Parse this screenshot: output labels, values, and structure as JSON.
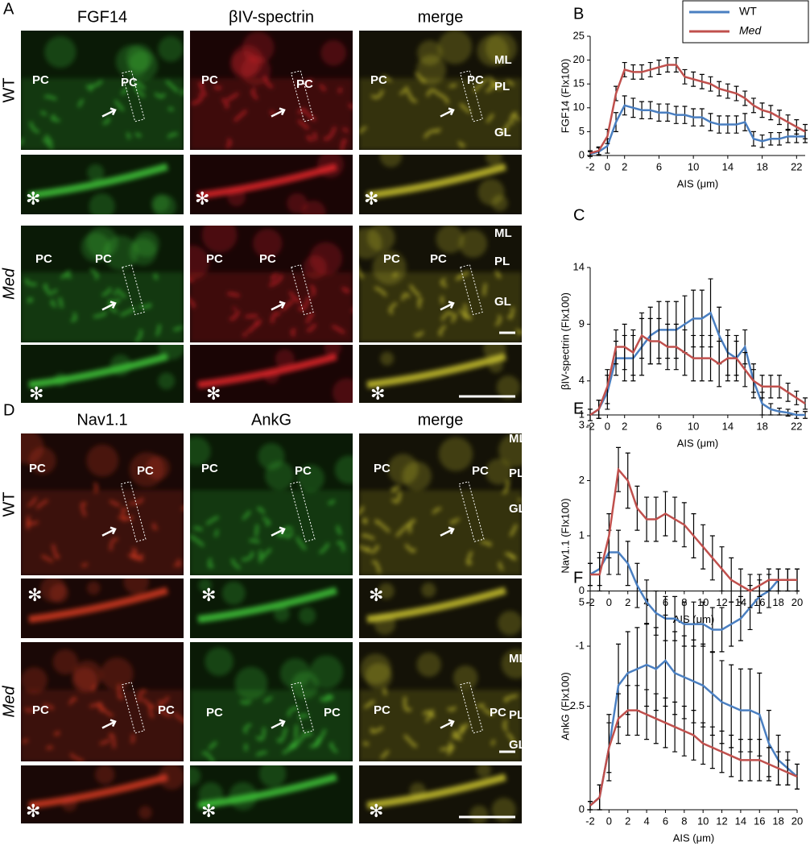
{
  "panel_A": {
    "panel_label": "A",
    "columns": [
      "FGF14",
      "βIV-spectrin",
      "merge"
    ],
    "rows": [
      "WT",
      "Med"
    ],
    "labels": [
      "PC",
      "PC",
      "PC",
      "PC",
      "PC",
      "PC",
      "ML",
      "PL",
      "GL",
      "✻",
      "✻",
      "✻",
      "PC",
      "PC",
      "PC",
      "PC",
      "PC",
      "PC",
      "ML",
      "PL",
      "GL",
      "✻",
      "✻",
      "✻"
    ]
  },
  "panel_D": {
    "panel_label": "D",
    "columns": [
      "Nav1.1",
      "AnkG",
      "merge"
    ],
    "rows": [
      "WT",
      "Med"
    ],
    "labels": [
      "PC",
      "PC",
      "PC",
      "PC",
      "PC",
      "PC",
      "ML",
      "PL",
      "GL",
      "✻",
      "✻",
      "✻",
      "PC",
      "PC",
      "PC",
      "PC",
      "PC",
      "PC",
      "ML",
      "PL",
      "GL",
      "✻",
      "✻",
      "✻"
    ]
  },
  "chart_data": [
    {
      "type": "line",
      "panel_label": "B",
      "y_label": "FGF14 (FIx100)",
      "x_label": "AIS  (μm)",
      "legend": "top-right",
      "x": [
        -2,
        -1,
        0,
        1,
        2,
        3,
        4,
        5,
        6,
        7,
        8,
        9,
        10,
        11,
        12,
        13,
        14,
        15,
        16,
        17,
        18,
        19,
        20,
        21,
        22,
        23
      ],
      "xlim": [
        -2,
        23
      ],
      "xticks": [
        -2,
        0,
        2,
        6,
        10,
        14,
        18,
        22
      ],
      "ylim": [
        0,
        25
      ],
      "yticks": [
        0,
        5,
        10,
        15,
        20,
        25
      ],
      "series": [
        {
          "name": "WT",
          "color": "#4a7fc1",
          "values": [
            0.3,
            0.8,
            2,
            7,
            10.5,
            10,
            9.5,
            9.5,
            9,
            9,
            8.5,
            8.5,
            8,
            8,
            7,
            6.5,
            6.5,
            6.5,
            7,
            3.5,
            3,
            3.5,
            3.5,
            4,
            4,
            4
          ],
          "errors": [
            0.5,
            0.8,
            1.5,
            2,
            2,
            2,
            1.8,
            1.8,
            1.8,
            1.8,
            1.8,
            1.8,
            1.8,
            1.8,
            1.8,
            1.8,
            1.8,
            1.8,
            1.8,
            1.5,
            1.3,
            1.3,
            1.3,
            1.3,
            1.3,
            1.3
          ]
        },
        {
          "name": "Med",
          "color": "#c0504d",
          "values": [
            0.5,
            1,
            4,
            13,
            18,
            17.5,
            17.5,
            18,
            18.5,
            19,
            19,
            16.5,
            16,
            15.5,
            15,
            14,
            13.5,
            13,
            12,
            10.5,
            9.5,
            9,
            8,
            7,
            6,
            5
          ],
          "errors": [
            0.5,
            0.8,
            1.5,
            1.5,
            1.5,
            1.5,
            1.5,
            1.5,
            1.5,
            1.5,
            1.5,
            1.5,
            1.5,
            1.5,
            1.5,
            1.5,
            1.5,
            1.5,
            1.5,
            1.5,
            1.5,
            1.5,
            1.5,
            1.5,
            1.5,
            1.5
          ]
        }
      ]
    },
    {
      "type": "line",
      "panel_label": "C",
      "y_label": "βIV-spectrin  (FIx100)",
      "x_label": "AIS  (μm)",
      "x": [
        -2,
        -1,
        0,
        1,
        2,
        3,
        4,
        5,
        6,
        7,
        8,
        9,
        10,
        11,
        12,
        13,
        14,
        15,
        16,
        17,
        18,
        19,
        20,
        21,
        22,
        23
      ],
      "xlim": [
        -2,
        23
      ],
      "xticks": [
        -2,
        0,
        2,
        6,
        10,
        14,
        18,
        22
      ],
      "ylim": [
        1,
        14
      ],
      "yticks": [
        1,
        4,
        9,
        14
      ],
      "series": [
        {
          "color": "#4a7fc1",
          "values": [
            1,
            1.5,
            3,
            6,
            6,
            6,
            7,
            8,
            8.5,
            8.5,
            8.5,
            9,
            9.5,
            9.5,
            10,
            8,
            6.5,
            6,
            7,
            4,
            2,
            1.5,
            1.3,
            1.2,
            1,
            1
          ],
          "errors": [
            0.5,
            0.8,
            1.5,
            1.5,
            2,
            2,
            2.5,
            2.5,
            2.5,
            2.5,
            2.5,
            2.5,
            2.5,
            2.5,
            3,
            2.5,
            2,
            2,
            1.5,
            1.5,
            1,
            0.5,
            0.3,
            0.3,
            0.3,
            0.3
          ]
        },
        {
          "color": "#c0504d",
          "values": [
            1,
            1.5,
            3.5,
            7,
            7,
            6.5,
            8,
            7.5,
            7.5,
            7,
            7,
            6.5,
            6,
            6,
            6,
            5.5,
            6,
            6,
            5,
            4,
            3.5,
            3.5,
            3.5,
            3,
            2.5,
            2
          ],
          "errors": [
            0.5,
            0.8,
            1.5,
            1.5,
            2,
            2,
            2,
            2,
            2,
            2,
            2,
            2,
            2,
            2,
            2,
            2,
            2,
            1.5,
            1.5,
            1,
            1,
            1,
            1,
            0.8,
            0.6,
            0.5
          ]
        }
      ]
    },
    {
      "type": "line",
      "panel_label": "E",
      "y_label": "Nav1.1 (FIx100)",
      "x_label": "AIS  (μm)",
      "x": [
        -2,
        -1,
        0,
        1,
        2,
        3,
        4,
        5,
        6,
        7,
        8,
        9,
        10,
        11,
        12,
        13,
        14,
        15,
        16,
        17,
        18,
        19,
        20
      ],
      "xlim": [
        -2,
        20
      ],
      "xticks": [
        -2,
        0,
        2,
        4,
        6,
        8,
        10,
        12,
        14,
        16,
        18,
        20
      ],
      "ylim": [
        -1,
        3
      ],
      "yticks": [
        -1,
        0,
        1,
        2,
        3
      ],
      "series": [
        {
          "color": "#4a7fc1",
          "values": [
            0.3,
            0.4,
            0.7,
            0.7,
            0.5,
            0.1,
            -0.2,
            -0.4,
            -0.5,
            -0.5,
            -0.6,
            -0.6,
            -0.6,
            -0.7,
            -0.7,
            -0.6,
            -0.5,
            -0.3,
            -0.1,
            0,
            0.2,
            0.2,
            0.2
          ],
          "errors": [
            0.2,
            0.3,
            0.4,
            0.4,
            0.4,
            0.4,
            0.4,
            0.4,
            0.4,
            0.4,
            0.4,
            0.4,
            0.4,
            0.4,
            0.4,
            0.4,
            0.4,
            0.4,
            0.3,
            0.3,
            0.2,
            0.2,
            0.2
          ]
        },
        {
          "color": "#c0504d",
          "values": [
            0.3,
            0.3,
            1,
            2.2,
            2,
            1.5,
            1.3,
            1.3,
            1.4,
            1.3,
            1.2,
            1,
            0.8,
            0.6,
            0.4,
            0.2,
            0.1,
            0,
            0.1,
            0.2,
            0.2,
            0.2,
            0.2
          ],
          "errors": [
            0.2,
            0.3,
            0.4,
            0.4,
            0.5,
            0.4,
            0.4,
            0.4,
            0.4,
            0.4,
            0.4,
            0.4,
            0.4,
            0.4,
            0.4,
            0.4,
            0.3,
            0.3,
            0.2,
            0.2,
            0.2,
            0.2,
            0.2
          ]
        }
      ]
    },
    {
      "type": "line",
      "panel_label": "F",
      "y_label": "AnkG  (FIx100)",
      "x_label": "AIS  (μm)",
      "x": [
        -2,
        -1,
        0,
        1,
        2,
        3,
        4,
        5,
        6,
        7,
        8,
        9,
        10,
        11,
        12,
        13,
        14,
        15,
        16,
        17,
        18,
        19,
        20
      ],
      "xlim": [
        -2,
        20
      ],
      "xticks": [
        -2,
        0,
        2,
        4,
        6,
        8,
        10,
        12,
        14,
        16,
        18,
        20
      ],
      "ylim": [
        0,
        5
      ],
      "yticks": [
        0,
        2.5,
        5
      ],
      "series": [
        {
          "color": "#4a7fc1",
          "values": [
            0.1,
            0.3,
            1.5,
            3,
            3.3,
            3.4,
            3.5,
            3.4,
            3.6,
            3.3,
            3.2,
            3.1,
            3,
            2.8,
            2.6,
            2.5,
            2.4,
            2.4,
            2.3,
            1.6,
            1.2,
            1,
            0.8
          ],
          "errors": [
            0.1,
            0.3,
            0.8,
            1,
            1,
            1,
            1,
            1,
            1.1,
            1,
            1,
            1,
            1,
            1,
            1,
            1,
            1,
            1,
            1,
            0.8,
            0.6,
            0.4,
            0.3
          ]
        },
        {
          "color": "#c0504d",
          "values": [
            0.1,
            0.3,
            1.5,
            2.2,
            2.4,
            2.4,
            2.3,
            2.2,
            2.1,
            2,
            1.9,
            1.8,
            1.6,
            1.5,
            1.4,
            1.3,
            1.2,
            1.2,
            1.2,
            1.1,
            1,
            0.9,
            0.8
          ],
          "errors": [
            0.1,
            0.3,
            0.6,
            0.6,
            0.6,
            0.6,
            0.6,
            0.6,
            0.6,
            0.6,
            0.6,
            0.6,
            0.5,
            0.5,
            0.5,
            0.5,
            0.5,
            0.5,
            0.5,
            0.4,
            0.4,
            0.3,
            0.3
          ]
        }
      ]
    }
  ]
}
